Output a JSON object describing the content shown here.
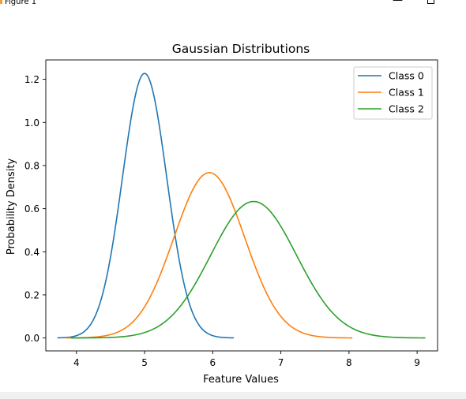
{
  "window": {
    "title": "Figure 1",
    "minimize_glyph": "—",
    "maximize_glyph": ""
  },
  "chart_data": {
    "type": "line",
    "title": "Gaussian Distributions",
    "xlabel": "Feature Values",
    "ylabel": "Probability Density",
    "xlim": [
      3.55,
      9.3
    ],
    "ylim": [
      -0.06,
      1.29
    ],
    "xticks": [
      4,
      5,
      6,
      7,
      8,
      9
    ],
    "yticks": [
      0.0,
      0.2,
      0.4,
      0.6,
      0.8,
      1.0,
      1.2
    ],
    "legend_position": "top-right",
    "grid": false,
    "series": [
      {
        "name": "Class 0",
        "color": "#1f77b4",
        "mean": 5.0,
        "std": 0.325,
        "x_range": [
          3.72,
          6.31
        ]
      },
      {
        "name": "Class 1",
        "color": "#ff7f0e",
        "mean": 5.95,
        "std": 0.52,
        "x_range": [
          3.85,
          8.05
        ]
      },
      {
        "name": "Class 2",
        "color": "#2ca02c",
        "mean": 6.6,
        "std": 0.63,
        "x_range": [
          3.92,
          9.12
        ]
      }
    ]
  }
}
